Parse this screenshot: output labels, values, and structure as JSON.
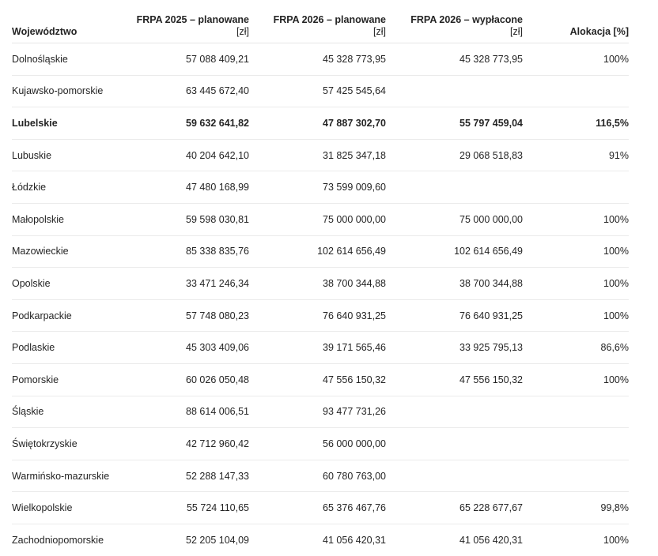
{
  "table": {
    "headers": [
      {
        "label": "Województwo",
        "unit": ""
      },
      {
        "label": "FRPA 2025 – planowane",
        "unit": "[zł]"
      },
      {
        "label": "FRPA 2026 – planowane",
        "unit": "[zł]"
      },
      {
        "label": "FRPA 2026 – wypłacone",
        "unit": "[zł]"
      },
      {
        "label": "Alokacja [%]",
        "unit": ""
      }
    ],
    "rows": [
      {
        "region": "Dolnośląskie",
        "plan2025": "57 088 409,21",
        "plan2026": "45 328 773,95",
        "paid2026": "45 328 773,95",
        "allocation": "100%",
        "highlight": false
      },
      {
        "region": "Kujawsko-pomorskie",
        "plan2025": "63 445 672,40",
        "plan2026": "57 425 545,64",
        "paid2026": "",
        "allocation": "",
        "highlight": false
      },
      {
        "region": "Lubelskie",
        "plan2025": "59 632 641,82",
        "plan2026": "47 887 302,70",
        "paid2026": "55 797 459,04",
        "allocation": "116,5%",
        "highlight": true
      },
      {
        "region": "Lubuskie",
        "plan2025": "40 204 642,10",
        "plan2026": "31 825 347,18",
        "paid2026": "29 068 518,83",
        "allocation": "91%",
        "highlight": false
      },
      {
        "region": "Łódzkie",
        "plan2025": "47 480 168,99",
        "plan2026": "73 599 009,60",
        "paid2026": "",
        "allocation": "",
        "highlight": false
      },
      {
        "region": "Małopolskie",
        "plan2025": "59 598 030,81",
        "plan2026": "75 000 000,00",
        "paid2026": "75 000 000,00",
        "allocation": "100%",
        "highlight": false
      },
      {
        "region": "Mazowieckie",
        "plan2025": "85 338 835,76",
        "plan2026": "102 614 656,49",
        "paid2026": "102 614 656,49",
        "allocation": "100%",
        "highlight": false
      },
      {
        "region": "Opolskie",
        "plan2025": "33 471 246,34",
        "plan2026": "38 700 344,88",
        "paid2026": "38 700 344,88",
        "allocation": "100%",
        "highlight": false
      },
      {
        "region": "Podkarpackie",
        "plan2025": "57 748 080,23",
        "plan2026": "76 640 931,25",
        "paid2026": "76 640 931,25",
        "allocation": "100%",
        "highlight": false
      },
      {
        "region": "Podlaskie",
        "plan2025": "45 303 409,06",
        "plan2026": "39 171 565,46",
        "paid2026": "33 925 795,13",
        "allocation": "86,6%",
        "highlight": false
      },
      {
        "region": "Pomorskie",
        "plan2025": "60 026 050,48",
        "plan2026": "47 556 150,32",
        "paid2026": "47 556 150,32",
        "allocation": "100%",
        "highlight": false
      },
      {
        "region": "Śląskie",
        "plan2025": "88 614 006,51",
        "plan2026": "93 477 731,26",
        "paid2026": "",
        "allocation": "",
        "highlight": false
      },
      {
        "region": "Świętokrzyskie",
        "plan2025": "42 712 960,42",
        "plan2026": "56 000 000,00",
        "paid2026": "",
        "allocation": "",
        "highlight": false
      },
      {
        "region": "Warmińsko-mazurskie",
        "plan2025": "52 288 147,33",
        "plan2026": "60 780 763,00",
        "paid2026": "",
        "allocation": "",
        "highlight": false
      },
      {
        "region": "Wielkopolskie",
        "plan2025": "55 724 110,65",
        "plan2026": "65 376 467,76",
        "paid2026": "65 228 677,67",
        "allocation": "99,8%",
        "highlight": false
      },
      {
        "region": "Zachodniopomorskie",
        "plan2025": "52 205 104,09",
        "plan2026": "41 056 420,31",
        "paid2026": "41 056 420,31",
        "allocation": "100%",
        "highlight": false
      }
    ]
  }
}
